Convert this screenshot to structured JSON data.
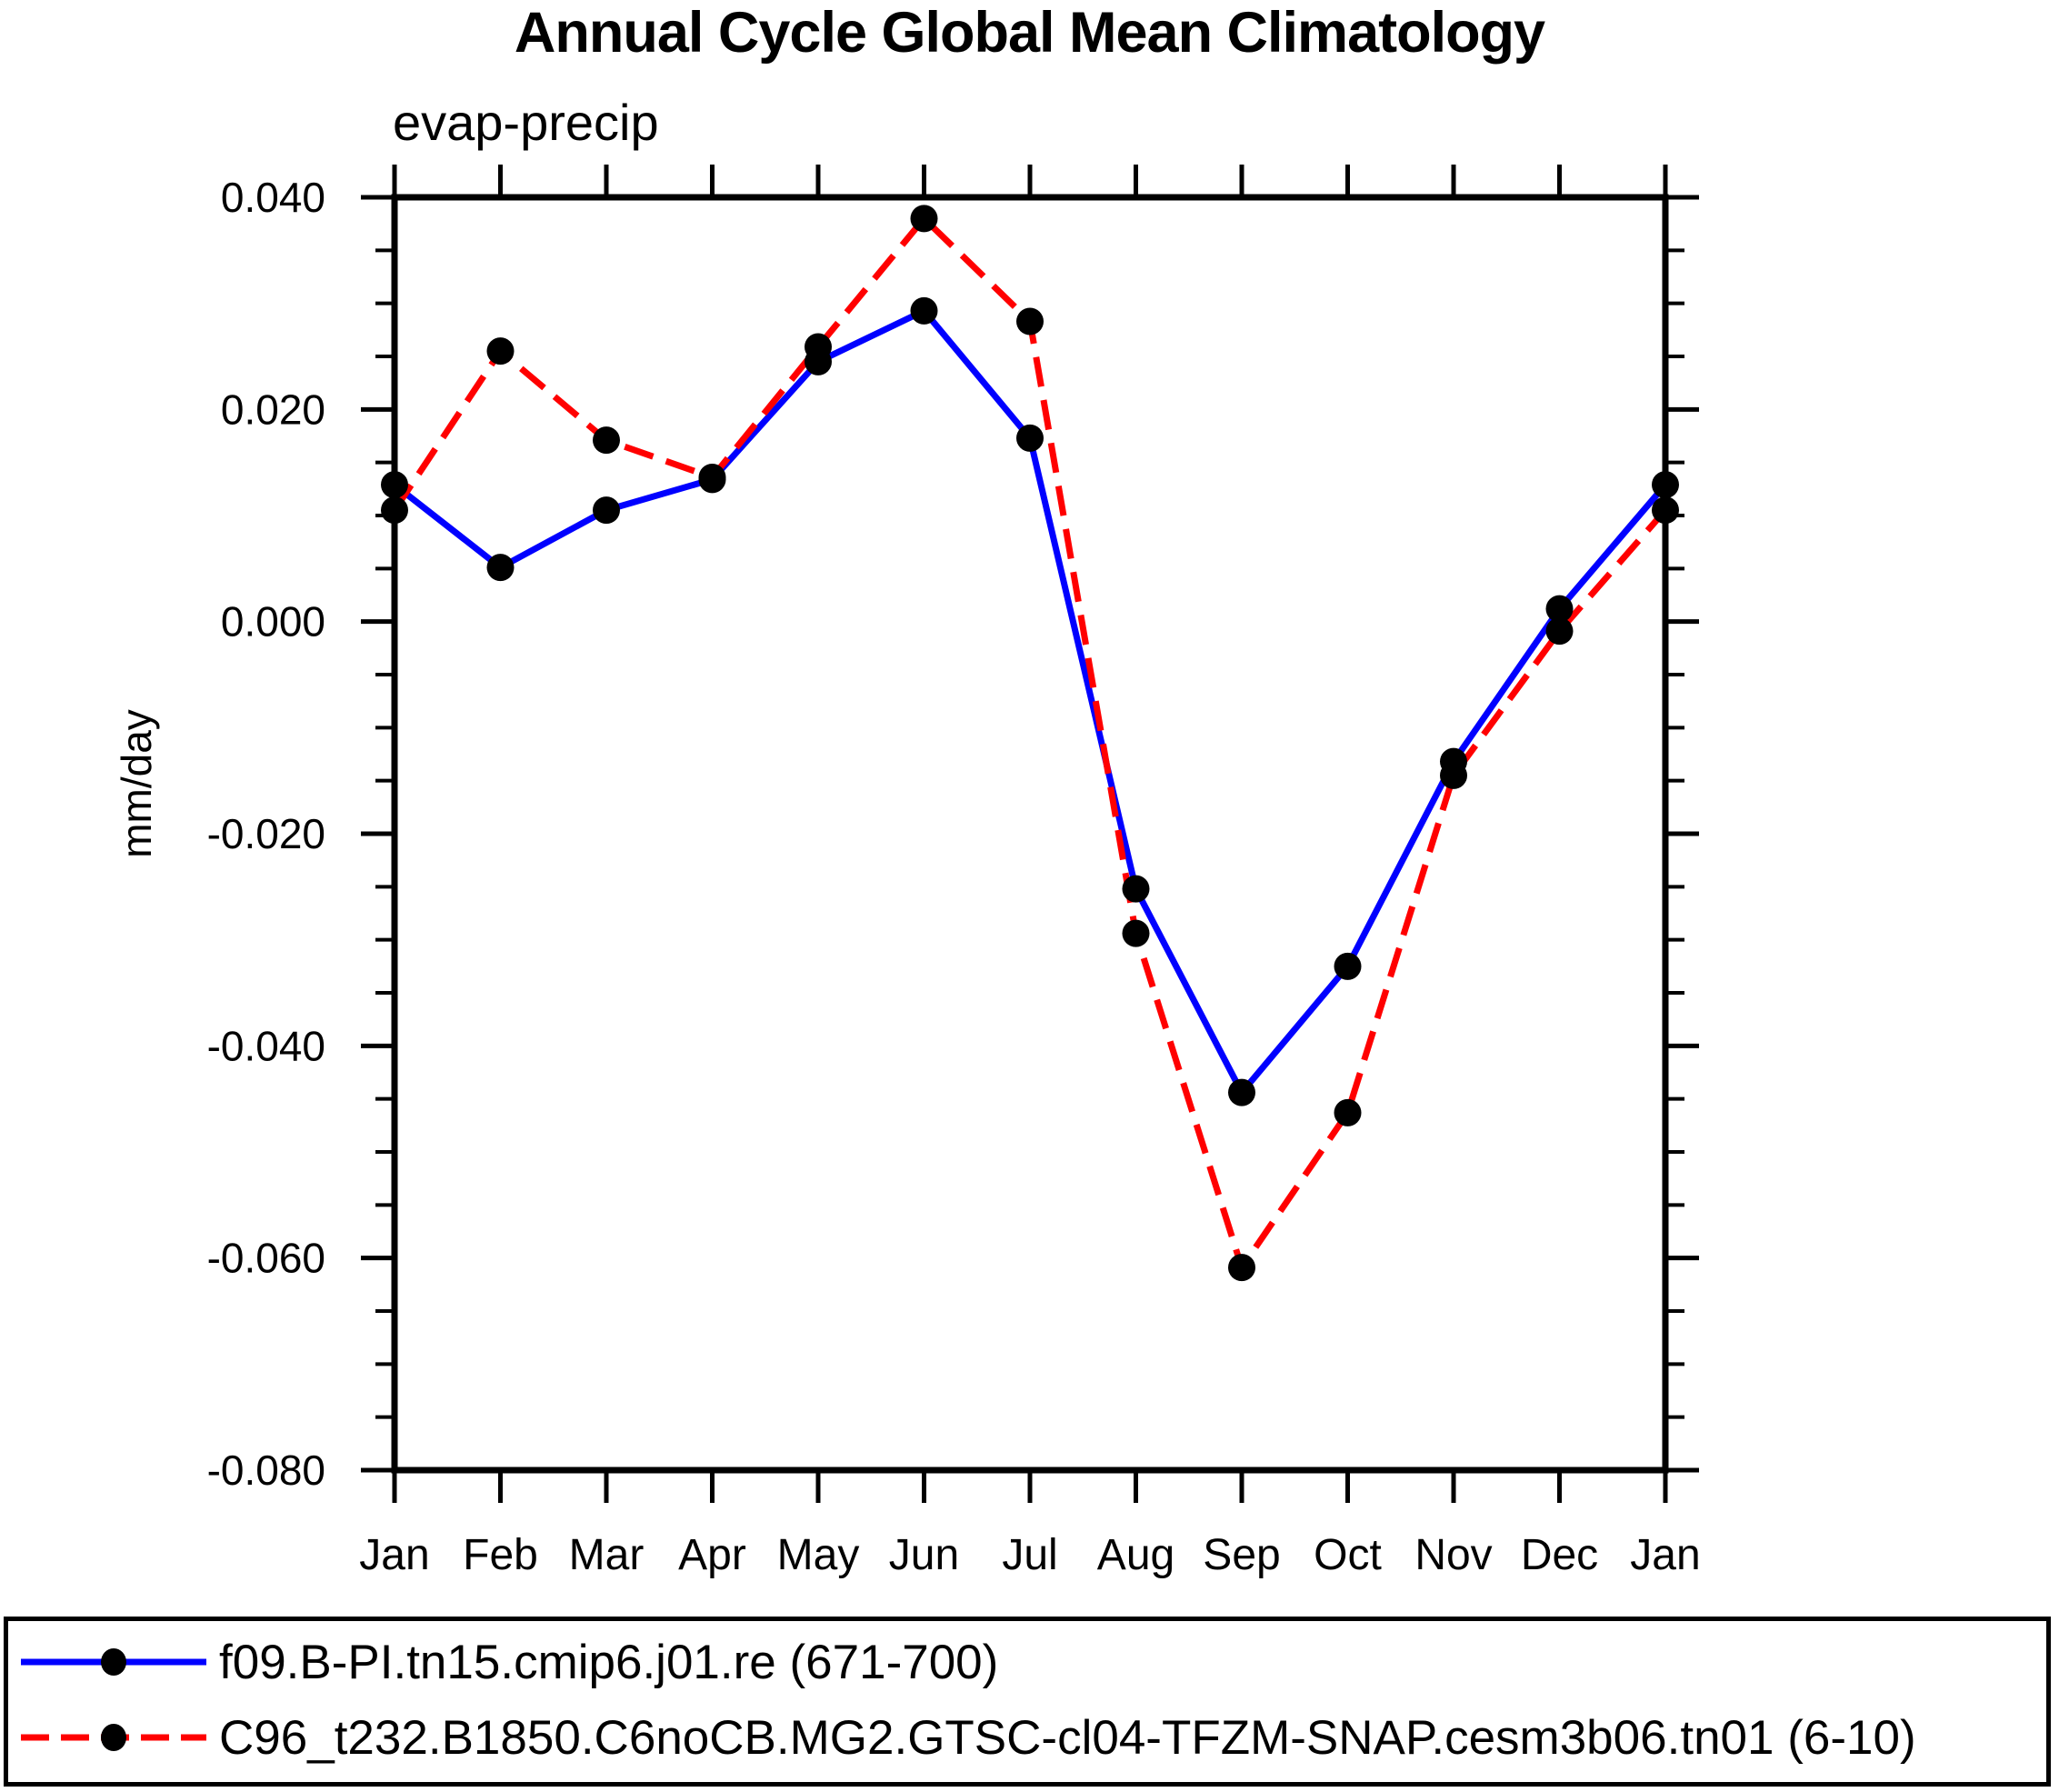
{
  "page": {
    "background": "#ffffff"
  },
  "chart_data": {
    "type": "line",
    "title": "Annual Cycle Global Mean Climatology",
    "subtitle": "evap-precip",
    "ylabel": "mm/day",
    "x_categories": [
      "Jan",
      "Feb",
      "Mar",
      "Apr",
      "May",
      "Jun",
      "Jul",
      "Aug",
      "Sep",
      "Oct",
      "Nov",
      "Dec",
      "Jan"
    ],
    "ylim": [
      -0.08,
      0.04
    ],
    "y_major_ticks": [
      0.04,
      0.02,
      0.0,
      -0.02,
      -0.04,
      -0.06,
      -0.08
    ],
    "y_tick_labels": [
      "0.040",
      "0.020",
      "0.000",
      "-0.020",
      "-0.040",
      "-0.060",
      "-0.080"
    ],
    "y_minor_step": 0.005,
    "grid": false,
    "legend_position": "bottom-box",
    "axis_color": "#000000",
    "marker": "filled-circle",
    "marker_color": "#000000",
    "series": [
      {
        "name": "f09.B-PI.tn15.cmip6.j01.re (671-700)",
        "color": "#0000ff",
        "style": "solid",
        "values": [
          0.0129,
          0.0051,
          0.0105,
          0.0134,
          0.0245,
          0.0293,
          0.0173,
          -0.0252,
          -0.0444,
          -0.0325,
          -0.0132,
          0.0012,
          0.0129
        ]
      },
      {
        "name": "C96_t232.B1850.C6noCB.MG2.GTSC-cl04-TFZM-SNAP.cesm3b06.tn01 (6-10)",
        "color": "#ff0000",
        "style": "dashed",
        "values": [
          0.0105,
          0.0255,
          0.0171,
          0.0136,
          0.0259,
          0.038,
          0.0283,
          -0.0294,
          -0.0609,
          -0.0463,
          -0.0145,
          -0.0009,
          0.0105
        ]
      }
    ]
  }
}
